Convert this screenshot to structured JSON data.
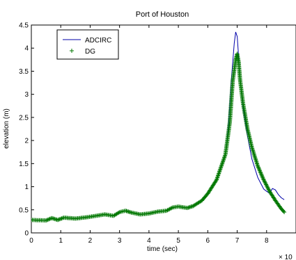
{
  "chart_data": {
    "type": "line",
    "title": "Port of Houston",
    "xlabel": "time (sec)",
    "ylabel": "elevation (m)",
    "x_multiplier_label": "× 10",
    "xlim": [
      0,
      9
    ],
    "ylim": [
      0,
      4.5
    ],
    "x_ticks": [
      0,
      1,
      2,
      3,
      4,
      5,
      6,
      7,
      8
    ],
    "y_ticks": [
      0,
      0.5,
      1,
      1.5,
      2,
      2.5,
      3,
      3.5,
      4,
      4.5
    ],
    "x_tick_labels": [
      "0",
      "1",
      "2",
      "3",
      "4",
      "5",
      "6",
      "7",
      "8"
    ],
    "y_tick_labels": [
      "0",
      "0.5",
      "1",
      "1.5",
      "2",
      "2.5",
      "3",
      "3.5",
      "4",
      "4.5"
    ],
    "grid": false,
    "legend_position": "top-left",
    "series": [
      {
        "name": "ADCIRC",
        "style": "line",
        "color": "#0000aa",
        "x": [
          0,
          0.5,
          0.7,
          0.9,
          1.1,
          1.5,
          1.9,
          2.2,
          2.5,
          2.8,
          3.0,
          3.2,
          3.4,
          3.7,
          4.0,
          4.3,
          4.6,
          4.8,
          5.0,
          5.3,
          5.5,
          5.8,
          6.0,
          6.3,
          6.6,
          6.7,
          6.8,
          6.9,
          6.95,
          7.0,
          7.05,
          7.1,
          7.2,
          7.35,
          7.5,
          7.7,
          7.9,
          8.0,
          8.1,
          8.2,
          8.3,
          8.4,
          8.5,
          8.6
        ],
        "y": [
          0.28,
          0.27,
          0.32,
          0.28,
          0.33,
          0.31,
          0.34,
          0.37,
          0.4,
          0.37,
          0.45,
          0.48,
          0.44,
          0.4,
          0.42,
          0.46,
          0.48,
          0.55,
          0.57,
          0.54,
          0.58,
          0.7,
          0.85,
          1.15,
          1.7,
          2.3,
          3.3,
          4.1,
          4.35,
          4.25,
          3.8,
          3.3,
          2.7,
          2.1,
          1.6,
          1.2,
          0.95,
          0.9,
          0.86,
          0.96,
          0.93,
          0.83,
          0.76,
          0.72
        ]
      },
      {
        "name": "DG",
        "style": "markers",
        "marker": "+",
        "color": "#007700",
        "x": [
          0,
          0.5,
          0.7,
          0.9,
          1.1,
          1.5,
          1.9,
          2.2,
          2.5,
          2.8,
          3.0,
          3.2,
          3.4,
          3.7,
          4.0,
          4.3,
          4.6,
          4.8,
          5.0,
          5.3,
          5.5,
          5.8,
          6.0,
          6.3,
          6.6,
          6.75,
          6.85,
          6.95,
          7.0,
          7.05,
          7.1,
          7.2,
          7.35,
          7.5,
          7.7,
          7.9,
          8.1,
          8.3,
          8.5,
          8.6
        ],
        "y": [
          0.28,
          0.27,
          0.32,
          0.28,
          0.33,
          0.31,
          0.34,
          0.37,
          0.4,
          0.37,
          0.45,
          0.48,
          0.44,
          0.4,
          0.42,
          0.46,
          0.48,
          0.55,
          0.57,
          0.54,
          0.58,
          0.7,
          0.85,
          1.15,
          1.7,
          2.4,
          3.3,
          3.75,
          3.88,
          3.7,
          3.3,
          2.8,
          2.25,
          1.85,
          1.45,
          1.15,
          0.9,
          0.7,
          0.52,
          0.45
        ]
      }
    ]
  }
}
